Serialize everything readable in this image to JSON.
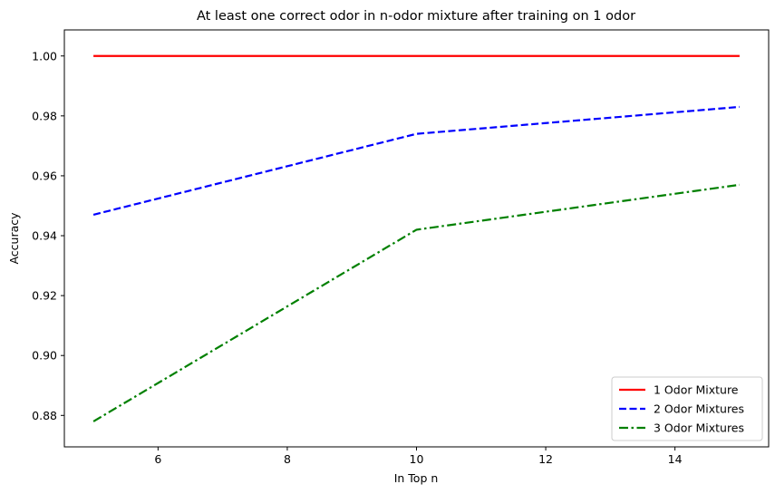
{
  "chart_data": {
    "type": "line",
    "title": "At least one correct odor in n-odor mixture after training on 1 odor",
    "xlabel": "In Top n",
    "ylabel": "Accuracy",
    "xlim": [
      4.55,
      15.45
    ],
    "ylim": [
      0.8695,
      1.0087
    ],
    "x_ticks": [
      6,
      8,
      10,
      12,
      14
    ],
    "x_tick_labels": [
      "6",
      "8",
      "10",
      "12",
      "14"
    ],
    "y_ticks": [
      0.88,
      0.9,
      0.92,
      0.94,
      0.96,
      0.98,
      1.0
    ],
    "y_tick_labels": [
      "0.88",
      "0.90",
      "0.92",
      "0.94",
      "0.96",
      "0.98",
      "1.00"
    ],
    "grid": false,
    "legend_position": "lower-right",
    "x": [
      5,
      10,
      15
    ],
    "series": [
      {
        "name": "1 Odor Mixture",
        "values": [
          1.0,
          1.0,
          1.0
        ],
        "color": "#ff0000",
        "dash": "solid"
      },
      {
        "name": "2 Odor Mixtures",
        "values": [
          0.947,
          0.974,
          0.983
        ],
        "color": "#0000ff",
        "dash": "dashed"
      },
      {
        "name": "3 Odor Mixtures",
        "values": [
          0.878,
          0.942,
          0.957
        ],
        "color": "#008000",
        "dash": "dashdot"
      }
    ]
  }
}
